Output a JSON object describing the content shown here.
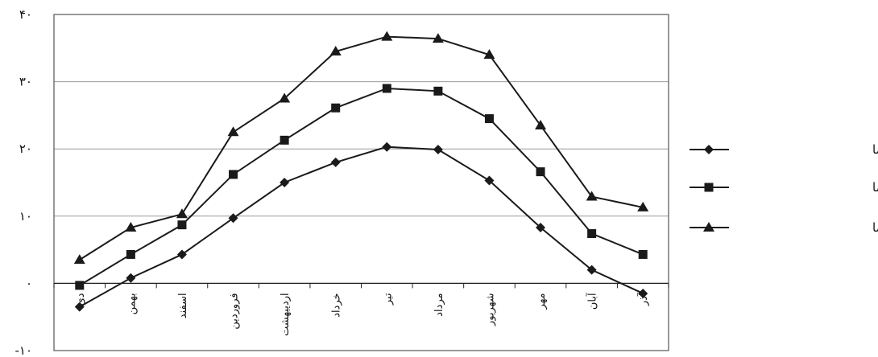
{
  "chart_data": {
    "type": "line",
    "categories": [
      "دی",
      "بهمن",
      "اسفند",
      "فروردین",
      "اردیبهشت",
      "خرداد",
      "تیر",
      "مرداد",
      "شهریور",
      "مهر",
      "آبان",
      "آذر"
    ],
    "series": [
      {
        "name": "متوسط حداقل دما",
        "marker": "diamond",
        "values": [
          -3.5,
          0.8,
          4.3,
          9.7,
          15.0,
          18.0,
          20.3,
          19.9,
          15.3,
          8.3,
          2.0,
          -1.5
        ]
      },
      {
        "name": "متوسط دما",
        "marker": "square",
        "values": [
          -0.3,
          4.3,
          8.7,
          16.2,
          21.3,
          26.1,
          29.0,
          28.6,
          24.5,
          16.6,
          7.4,
          4.3
        ]
      },
      {
        "name": "متوسط حداکثر دما",
        "marker": "triangle",
        "values": [
          3.5,
          8.3,
          10.3,
          22.5,
          27.5,
          34.5,
          36.7,
          36.4,
          34.0,
          23.5,
          12.9,
          11.3
        ]
      }
    ],
    "ylim": [
      -10,
      40
    ],
    "yticks": [
      -10,
      0,
      10,
      20,
      30,
      40
    ],
    "ytick_labels": [
      "-۱۰",
      "۰",
      "۱۰",
      "۲۰",
      "۳۰",
      "۴۰"
    ],
    "grid": true,
    "legend_position": "right",
    "colors": {
      "line": "#1a1a1a",
      "grid": "#9a9a9a",
      "frame": "#555555"
    }
  }
}
